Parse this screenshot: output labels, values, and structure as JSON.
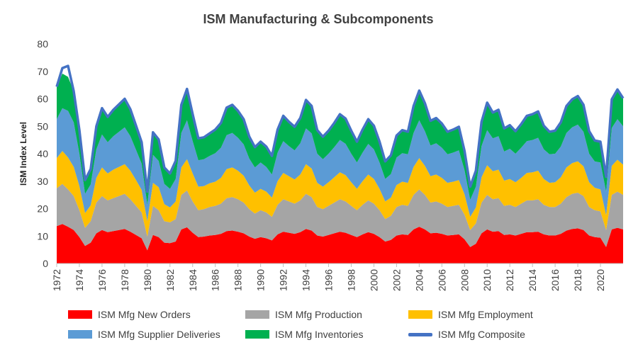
{
  "chart_data": {
    "type": "area",
    "title": "ISM Manufacturing & Subcomponents",
    "xlabel": "",
    "ylabel": "ISM Index Level",
    "ylim": [
      0,
      80
    ],
    "yticks": [
      "0",
      "10",
      "20",
      "30",
      "40",
      "50",
      "60",
      "70",
      "80"
    ],
    "xlim": [
      1972.0,
      2022.0
    ],
    "xticks": [
      "1972",
      "1974",
      "1976",
      "1978",
      "1980",
      "1982",
      "1984",
      "1986",
      "1988",
      "1990",
      "1992",
      "1994",
      "1996",
      "1998",
      "2000",
      "2002",
      "2004",
      "2006",
      "2008",
      "2010",
      "2012",
      "2014",
      "2016",
      "2018",
      "2020"
    ],
    "grid": false,
    "stacked": true,
    "legend": "bottom",
    "x": [
      1972.0,
      1972.5,
      1973.0,
      1973.5,
      1974.0,
      1974.5,
      1975.0,
      1975.5,
      1976.0,
      1976.5,
      1977.0,
      1977.5,
      1978.0,
      1978.5,
      1979.0,
      1979.5,
      1980.0,
      1980.5,
      1981.0,
      1981.5,
      1982.0,
      1982.5,
      1983.0,
      1983.5,
      1984.0,
      1984.5,
      1985.0,
      1985.5,
      1986.0,
      1986.5,
      1987.0,
      1987.5,
      1988.0,
      1988.5,
      1989.0,
      1989.5,
      1990.0,
      1990.5,
      1991.0,
      1991.5,
      1992.0,
      1992.5,
      1993.0,
      1993.5,
      1994.0,
      1994.5,
      1995.0,
      1995.5,
      1996.0,
      1996.5,
      1997.0,
      1997.5,
      1998.0,
      1998.5,
      1999.0,
      1999.5,
      2000.0,
      2000.5,
      2001.0,
      2001.5,
      2002.0,
      2002.5,
      2003.0,
      2003.5,
      2004.0,
      2004.5,
      2005.0,
      2005.5,
      2006.0,
      2006.5,
      2007.0,
      2007.5,
      2008.0,
      2008.5,
      2009.0,
      2009.5,
      2010.0,
      2010.5,
      2011.0,
      2011.5,
      2012.0,
      2012.5,
      2013.0,
      2013.5,
      2014.0,
      2014.5,
      2015.0,
      2015.5,
      2016.0,
      2016.5,
      2017.0,
      2017.5,
      2018.0,
      2018.5,
      2019.0,
      2019.5,
      2020.0,
      2020.5,
      2021.0,
      2021.5,
      2022.0
    ],
    "series": [
      {
        "name": "ISM Mfg New Orders",
        "color": "#ff0000",
        "values": [
          13.6,
          14.4,
          13.4,
          12.2,
          9.6,
          6.4,
          7.6,
          11.0,
          12.2,
          11.4,
          11.8,
          12.2,
          12.6,
          11.6,
          10.4,
          9.2,
          4.8,
          10.4,
          9.6,
          7.6,
          7.4,
          8.0,
          12.4,
          13.2,
          11.2,
          9.6,
          9.8,
          10.2,
          10.4,
          10.8,
          11.8,
          12.0,
          11.6,
          11.0,
          9.8,
          9.0,
          9.6,
          9.2,
          8.4,
          10.6,
          11.6,
          11.2,
          10.8,
          11.4,
          12.6,
          12.0,
          10.2,
          9.8,
          10.4,
          11.0,
          11.6,
          11.2,
          10.4,
          9.6,
          10.6,
          11.4,
          10.8,
          9.6,
          8.0,
          8.6,
          10.2,
          10.6,
          10.4,
          12.4,
          13.4,
          12.4,
          11.0,
          11.2,
          10.8,
          10.2,
          10.4,
          10.6,
          8.8,
          6.0,
          7.2,
          11.0,
          12.4,
          11.6,
          11.8,
          10.4,
          10.6,
          10.2,
          10.8,
          11.4,
          11.4,
          11.6,
          10.6,
          10.2,
          10.2,
          10.8,
          12.0,
          12.6,
          12.8,
          12.2,
          10.2,
          9.6,
          9.4,
          6.0,
          12.4,
          13.0,
          12.4
        ]
      },
      {
        "name": "ISM Mfg Production",
        "color": "#a5a5a5",
        "values": [
          13.8,
          14.6,
          13.6,
          12.4,
          9.8,
          6.6,
          7.8,
          11.2,
          12.4,
          11.6,
          12.0,
          12.4,
          12.8,
          11.8,
          10.6,
          9.4,
          5.0,
          10.6,
          9.8,
          7.8,
          7.6,
          8.2,
          12.6,
          13.4,
          11.4,
          9.8,
          10.0,
          10.4,
          10.6,
          11.0,
          12.0,
          12.2,
          11.8,
          11.2,
          10.0,
          9.2,
          9.8,
          9.4,
          8.6,
          10.8,
          11.8,
          11.4,
          11.0,
          11.6,
          12.8,
          12.2,
          10.4,
          10.0,
          10.6,
          11.2,
          11.8,
          11.4,
          10.6,
          9.8,
          10.8,
          11.6,
          11.0,
          9.8,
          8.2,
          8.8,
          10.4,
          10.8,
          10.6,
          12.6,
          13.6,
          12.6,
          11.2,
          11.4,
          11.0,
          10.4,
          10.6,
          10.8,
          9.0,
          6.2,
          7.4,
          11.2,
          12.6,
          11.8,
          12.0,
          10.6,
          10.8,
          10.4,
          11.0,
          11.6,
          11.6,
          11.8,
          10.8,
          10.4,
          10.4,
          11.0,
          12.2,
          12.8,
          13.0,
          12.4,
          10.4,
          9.8,
          9.6,
          6.2,
          12.6,
          13.2,
          12.6
        ]
      },
      {
        "name": "ISM Mfg Employment",
        "color": "#ffc000",
        "values": [
          11.0,
          12.0,
          11.6,
          10.6,
          8.8,
          5.4,
          5.8,
          9.0,
          10.4,
          9.8,
          10.4,
          10.6,
          10.8,
          10.4,
          9.4,
          8.2,
          5.6,
          8.4,
          8.4,
          6.2,
          5.4,
          6.4,
          10.0,
          11.4,
          10.2,
          8.6,
          8.4,
          8.6,
          8.8,
          9.4,
          10.6,
          10.8,
          10.4,
          9.8,
          8.6,
          7.6,
          7.8,
          7.6,
          7.0,
          8.6,
          9.6,
          9.2,
          8.8,
          9.4,
          10.8,
          10.4,
          8.8,
          8.2,
          8.6,
          9.2,
          9.8,
          9.6,
          8.6,
          7.8,
          8.6,
          9.4,
          9.0,
          7.8,
          6.4,
          6.6,
          8.0,
          8.4,
          8.4,
          10.2,
          11.4,
          10.6,
          9.6,
          9.8,
          9.4,
          8.8,
          8.8,
          9.0,
          7.4,
          4.8,
          5.8,
          9.2,
          10.8,
          10.2,
          10.4,
          9.2,
          9.4,
          9.0,
          9.4,
          10.0,
          10.2,
          10.4,
          9.4,
          8.8,
          9.0,
          9.6,
          10.8,
          11.2,
          11.4,
          10.8,
          9.0,
          8.2,
          8.0,
          5.4,
          10.6,
          11.6,
          11.0
        ]
      },
      {
        "name": "ISM Mfg Supplier Deliveries",
        "color": "#5b9bd5",
        "values": [
          14.2,
          15.6,
          17.0,
          16.2,
          11.8,
          7.0,
          7.6,
          10.4,
          12.0,
          11.4,
          12.2,
          12.8,
          13.4,
          12.6,
          11.0,
          9.6,
          6.0,
          10.2,
          9.6,
          7.4,
          6.8,
          8.2,
          12.6,
          14.2,
          11.8,
          9.6,
          9.8,
          10.0,
          10.4,
          11.0,
          12.4,
          12.6,
          12.0,
          11.4,
          9.8,
          9.2,
          9.6,
          9.0,
          8.4,
          10.4,
          11.6,
          11.0,
          10.6,
          11.4,
          13.0,
          12.8,
          10.6,
          10.0,
          10.4,
          11.0,
          11.8,
          11.4,
          10.4,
          9.6,
          10.4,
          11.2,
          10.8,
          9.6,
          8.2,
          8.6,
          10.0,
          10.4,
          10.4,
          12.4,
          13.8,
          12.6,
          11.2,
          11.4,
          11.0,
          10.4,
          10.6,
          10.8,
          8.8,
          6.2,
          7.6,
          11.4,
          12.8,
          12.0,
          12.2,
          10.6,
          11.0,
          10.4,
          11.0,
          11.6,
          11.8,
          12.0,
          10.8,
          10.4,
          10.4,
          11.2,
          12.6,
          13.0,
          13.4,
          12.6,
          10.4,
          9.6,
          9.8,
          8.6,
          13.8,
          14.8,
          14.0
        ]
      },
      {
        "name": "ISM Mfg Inventories",
        "color": "#00b050",
        "values": [
          11.8,
          12.6,
          12.4,
          11.4,
          8.6,
          5.0,
          5.6,
          8.4,
          9.6,
          9.2,
          9.6,
          10.0,
          10.4,
          9.8,
          8.8,
          7.8,
          4.8,
          8.2,
          7.8,
          6.0,
          5.6,
          6.6,
          10.2,
          11.4,
          9.8,
          8.0,
          8.0,
          8.2,
          8.6,
          9.0,
          10.0,
          10.2,
          9.8,
          9.2,
          8.0,
          7.4,
          7.6,
          7.4,
          6.8,
          8.4,
          9.2,
          8.8,
          8.6,
          9.2,
          10.4,
          10.0,
          8.6,
          8.2,
          8.4,
          8.8,
          9.4,
          9.2,
          8.4,
          7.6,
          8.4,
          9.0,
          8.6,
          7.6,
          6.4,
          6.8,
          8.0,
          8.4,
          8.2,
          9.8,
          10.8,
          10.2,
          9.0,
          9.2,
          8.8,
          8.2,
          8.4,
          8.6,
          7.0,
          4.8,
          5.8,
          8.8,
          10.0,
          9.4,
          9.6,
          8.4,
          8.6,
          8.2,
          8.6,
          9.2,
          9.4,
          9.6,
          8.6,
          8.2,
          8.4,
          8.8,
          9.8,
          10.2,
          10.4,
          9.8,
          8.2,
          7.6,
          7.6,
          5.4,
          10.4,
          10.8,
          10.2
        ]
      },
      {
        "name": "ISM Mfg Composite",
        "color": "#4472c4",
        "type": "line",
        "values": [
          64.4,
          71.2,
          72.0,
          62.8,
          48.6,
          30.4,
          34.4,
          50.0,
          56.6,
          53.4,
          56.0,
          58.0,
          60.0,
          56.2,
          50.2,
          44.2,
          26.2,
          47.8,
          45.2,
          35.0,
          32.8,
          37.4,
          57.8,
          63.6,
          54.4,
          45.6,
          46.0,
          47.4,
          48.8,
          51.2,
          56.8,
          57.8,
          55.6,
          52.6,
          46.2,
          42.4,
          44.4,
          42.6,
          39.2,
          48.8,
          53.8,
          51.6,
          49.8,
          53.0,
          59.6,
          57.4,
          48.6,
          46.2,
          48.4,
          51.2,
          54.4,
          52.8,
          48.4,
          44.4,
          48.8,
          52.6,
          50.2,
          44.4,
          37.2,
          39.4,
          46.6,
          48.6,
          48.0,
          57.4,
          63.0,
          58.4,
          52.0,
          53.0,
          51.0,
          48.0,
          48.8,
          49.8,
          41.0,
          28.0,
          33.8,
          51.6,
          58.6,
          55.0,
          56.0,
          49.2,
          50.4,
          48.2,
          50.8,
          53.8,
          54.4,
          55.4,
          50.2,
          48.0,
          48.4,
          51.4,
          57.4,
          59.8,
          61.0,
          57.8,
          48.2,
          44.8,
          44.4,
          31.6,
          59.8,
          63.4,
          60.2
        ]
      }
    ]
  }
}
